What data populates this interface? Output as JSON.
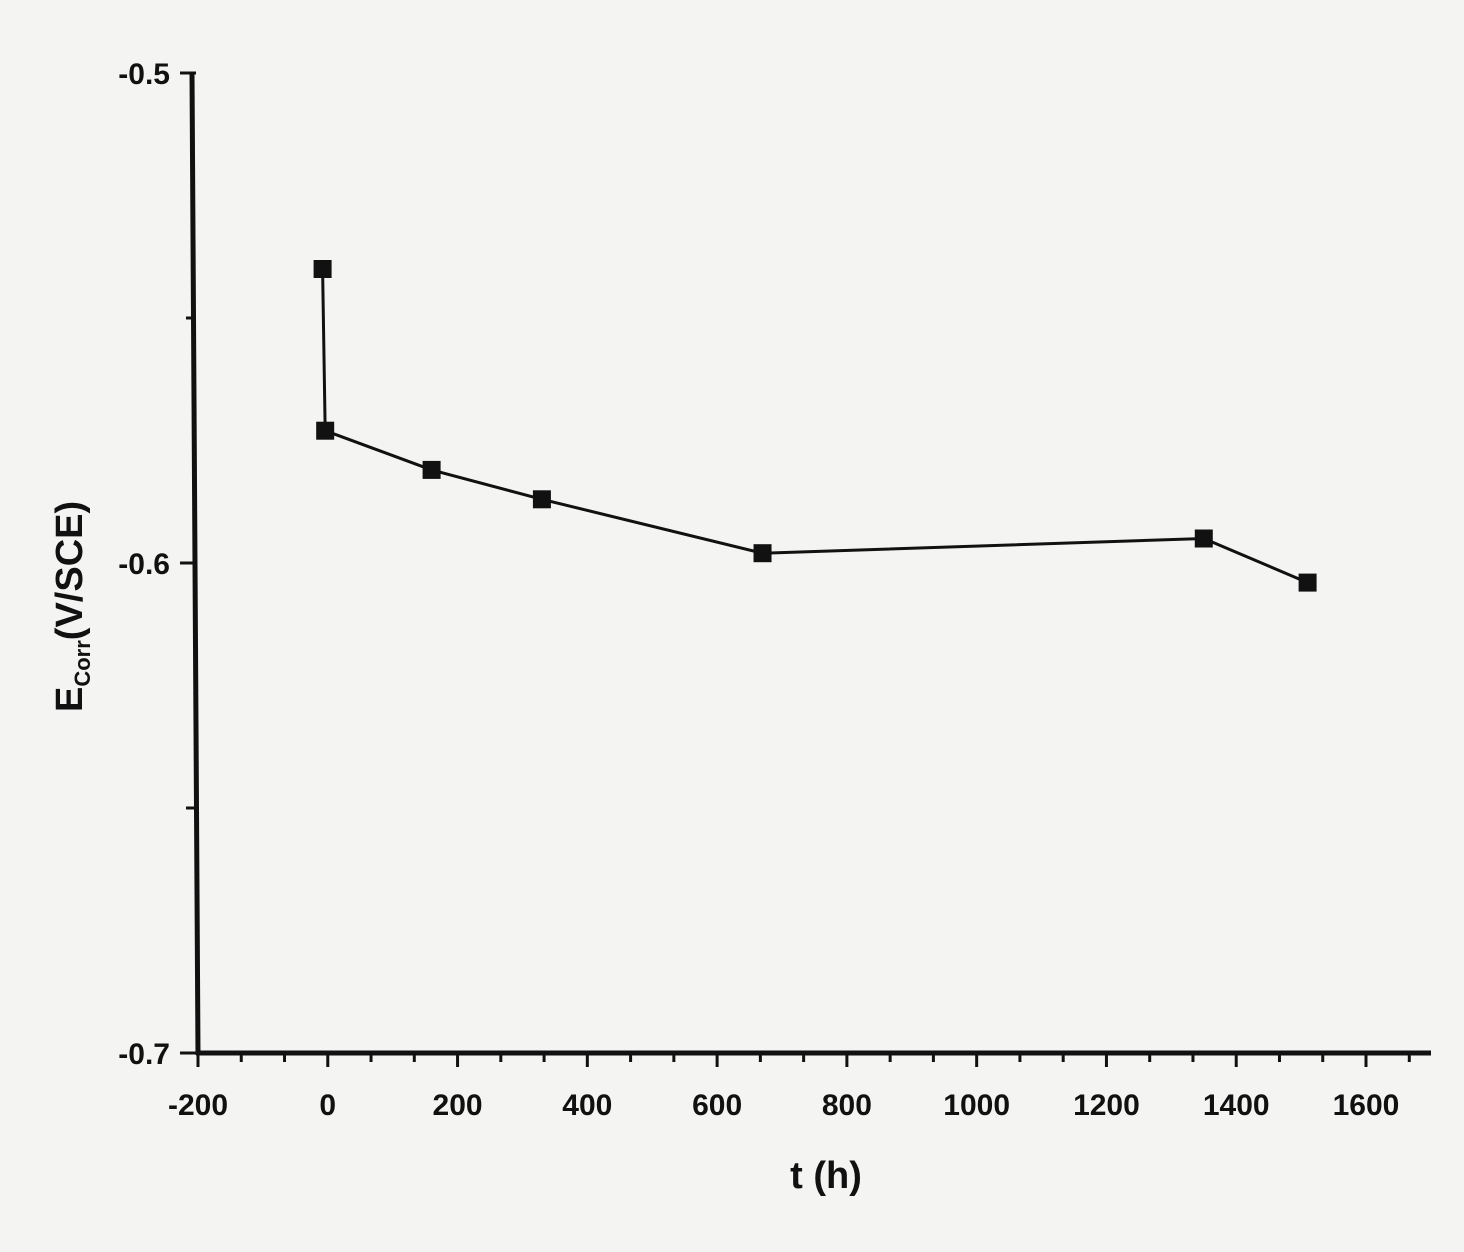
{
  "chart_data": {
    "type": "line",
    "xlabel": "t (h)",
    "ylabel": {
      "main": "E",
      "sub": "Corr",
      "rest": "(V/SCE)"
    },
    "xlim": [
      -200,
      1600
    ],
    "ylim": [
      -0.7,
      -0.5
    ],
    "xticks": [
      "-200",
      "0",
      "200",
      "400",
      "600",
      "800",
      "1000",
      "1200",
      "1400",
      "1600"
    ],
    "yticks": [
      "-0.5",
      "-0.6",
      "-0.7"
    ],
    "grid": false,
    "series": [
      {
        "marker": "square",
        "color": "#111111",
        "points": [
          {
            "x": -8,
            "y": -0.54
          },
          {
            "x": -4,
            "y": -0.573
          },
          {
            "x": 160,
            "y": -0.581
          },
          {
            "x": 330,
            "y": -0.587
          },
          {
            "x": 670,
            "y": -0.598
          },
          {
            "x": 1350,
            "y": -0.595
          },
          {
            "x": 1510,
            "y": -0.604
          }
        ]
      }
    ]
  }
}
